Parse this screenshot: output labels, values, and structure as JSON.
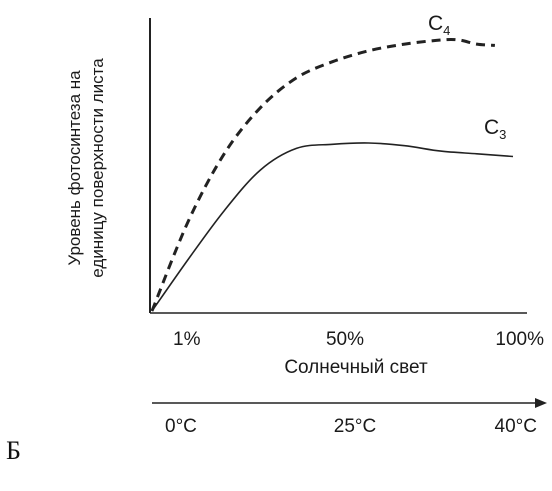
{
  "panel_label": "Б",
  "chart_data": {
    "type": "line",
    "ylabel_line1": "Уровень фотосинтеза на",
    "ylabel_line2": "единицу поверхности листа",
    "xlabel": "Солнечный свет",
    "x_ticks": [
      "1%",
      "50%",
      "100%"
    ],
    "x_range": [
      0,
      100
    ],
    "temp_ticks": [
      "0°C",
      "25°C",
      "40°C"
    ],
    "ylim": [
      0,
      100
    ],
    "grid": false,
    "legend": "none",
    "series": [
      {
        "name": "C",
        "name_sub": "4",
        "style": "dashed",
        "color": "#222222",
        "x": [
          0,
          10,
          20,
          30,
          40,
          50,
          60,
          70,
          80,
          85,
          90,
          95
        ],
        "y": [
          0,
          33,
          58,
          75,
          86,
          92,
          96,
          98.5,
          100,
          100,
          98.5,
          98
        ]
      },
      {
        "name": "C",
        "name_sub": "3",
        "style": "solid",
        "color": "#222222",
        "x": [
          0,
          10,
          20,
          30,
          40,
          50,
          60,
          70,
          80,
          90,
          100
        ],
        "y": [
          0,
          19,
          37,
          52,
          60,
          61.5,
          62,
          61,
          59,
          58,
          57
        ]
      }
    ]
  }
}
